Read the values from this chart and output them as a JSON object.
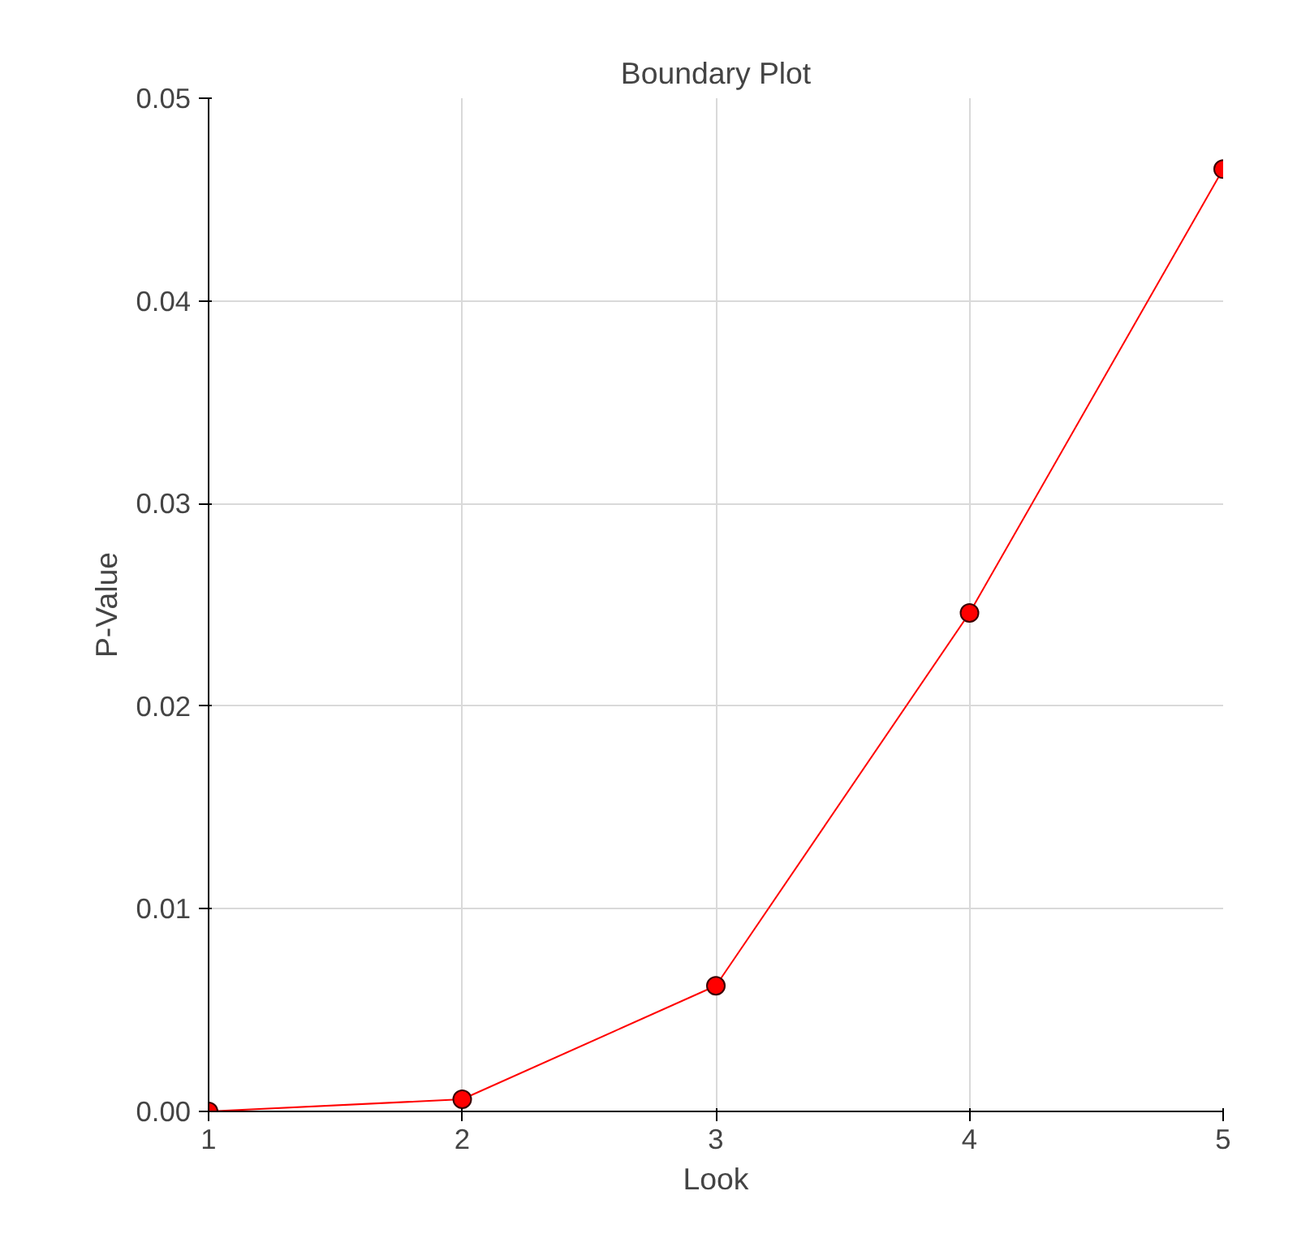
{
  "chart_data": {
    "type": "line",
    "title": "Boundary Plot",
    "xlabel": "Look",
    "ylabel": "P-Value",
    "x": [
      1,
      2,
      3,
      4,
      5
    ],
    "series": [
      {
        "color": "#ff0000",
        "values": [
          0,
          0.0006,
          0.0062,
          0.0246,
          0.0465
        ]
      }
    ],
    "xlim": [
      1,
      5
    ],
    "ylim": [
      0,
      0.05
    ],
    "xticks": [
      1,
      2,
      3,
      4,
      5
    ],
    "yticks": [
      {
        "value": 0,
        "label": "0.00"
      },
      {
        "value": 0.01,
        "label": "0.01"
      },
      {
        "value": 0.02,
        "label": "0.02"
      },
      {
        "value": 0.03,
        "label": "0.03"
      },
      {
        "value": 0.04,
        "label": "0.04"
      },
      {
        "value": 0.05,
        "label": "0.05"
      }
    ],
    "grid": true,
    "marker": "circle",
    "line_style": "solid"
  }
}
